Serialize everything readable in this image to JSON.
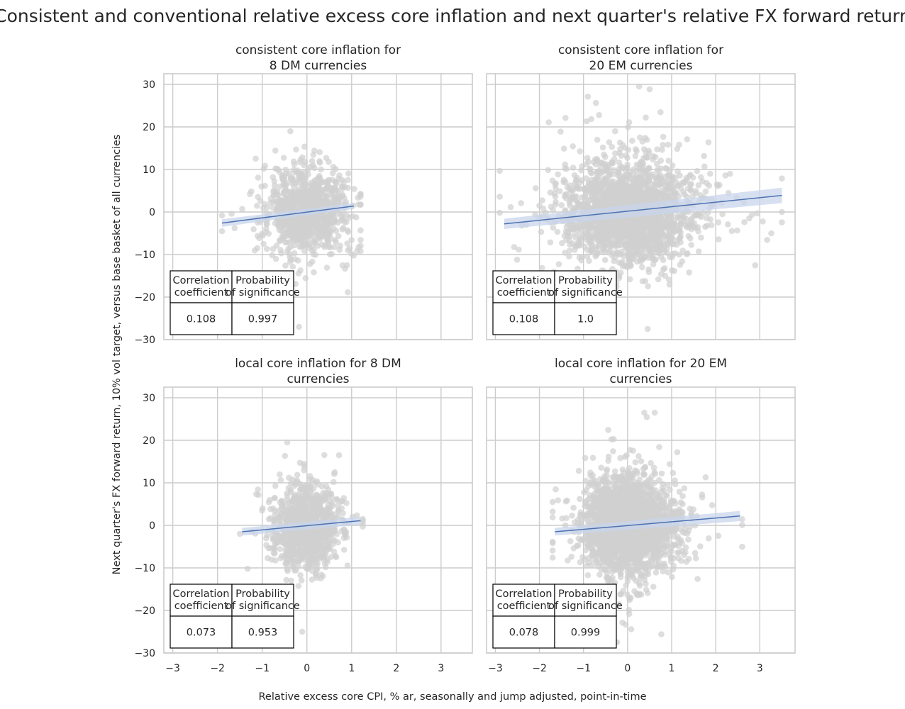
{
  "figure": {
    "title": "Consistent and conventional relative excess core inflation and next quarter's relative FX forward return",
    "xlabel": "Relative excess core CPI, % ar, seasonally and jump adjusted, point-in-time",
    "ylabel": "Next quarter's FX forward return, 10% vol target, versus base basket of all currencies",
    "colors": {
      "points": "#d0d0d0",
      "line": "#4c72b0",
      "band": "#c8d6ec",
      "grid": "#cccccc",
      "spine": "#cccccc"
    }
  },
  "chart_data": [
    {
      "type": "scatter",
      "title_lines": [
        "consistent core inflation for",
        "8 DM currencies"
      ],
      "xlim": [
        -3.2,
        3.7
      ],
      "ylim": [
        -30,
        32.5
      ],
      "xticks": [
        -3,
        -2,
        -1,
        0,
        1,
        2,
        3
      ],
      "yticks": [
        -30,
        -20,
        -10,
        0,
        10,
        20,
        30
      ],
      "show_xticklabels": false,
      "show_yticklabels": true,
      "cloud": {
        "n": 950,
        "x_center": 0.0,
        "x_spread": 0.45,
        "x_range": [
          -1.9,
          1.2
        ],
        "y_spread": 5.0,
        "y_range": [
          -27,
          19.5
        ]
      },
      "regression": {
        "x": [
          -1.9,
          1.05
        ],
        "y": [
          -2.6,
          1.4
        ],
        "band_halfwidth": [
          0.9,
          0.7
        ]
      },
      "stats_table": {
        "headers": [
          [
            "Correlation",
            "coefficient"
          ],
          [
            "Probability",
            "of significance"
          ]
        ],
        "values": [
          "0.108",
          "0.997"
        ]
      }
    },
    {
      "type": "scatter",
      "title_lines": [
        "consistent core inflation for",
        "20 EM currencies"
      ],
      "xlim": [
        -3.2,
        3.8
      ],
      "ylim": [
        -30,
        32.5
      ],
      "xticks": [
        -3,
        -2,
        -1,
        0,
        1,
        2,
        3
      ],
      "yticks": [
        -30,
        -20,
        -10,
        0,
        10,
        20,
        30
      ],
      "show_xticklabels": false,
      "show_yticklabels": false,
      "cloud": {
        "n": 2200,
        "x_center": 0.0,
        "x_spread": 0.7,
        "x_range": [
          -2.9,
          3.5
        ],
        "y_spread": 5.8,
        "y_range": [
          -27.5,
          29.5
        ]
      },
      "regression": {
        "x": [
          -2.8,
          3.5
        ],
        "y": [
          -2.8,
          3.9
        ],
        "band_halfwidth": [
          1.2,
          1.8
        ]
      },
      "stats_table": {
        "headers": [
          [
            "Correlation",
            "coefficient"
          ],
          [
            "Probability",
            "of significance"
          ]
        ],
        "values": [
          "0.108",
          "1.0"
        ]
      }
    },
    {
      "type": "scatter",
      "title_lines": [
        "local core inflation for 8 DM",
        "currencies"
      ],
      "xlim": [
        -3.2,
        3.7
      ],
      "ylim": [
        -30,
        32.5
      ],
      "xticks": [
        -3,
        -2,
        -1,
        0,
        1,
        2,
        3
      ],
      "yticks": [
        -30,
        -20,
        -10,
        0,
        10,
        20,
        30
      ],
      "show_xticklabels": true,
      "show_yticklabels": true,
      "cloud": {
        "n": 950,
        "x_center": 0.0,
        "x_spread": 0.35,
        "x_range": [
          -1.5,
          1.25
        ],
        "y_spread": 5.0,
        "y_range": [
          -25,
          19.5
        ]
      },
      "regression": {
        "x": [
          -1.45,
          1.2
        ],
        "y": [
          -1.5,
          1.1
        ],
        "band_halfwidth": [
          0.9,
          0.9
        ]
      },
      "stats_table": {
        "headers": [
          [
            "Correlation",
            "coefficient"
          ],
          [
            "Probability",
            "of significance"
          ]
        ],
        "values": [
          "0.073",
          "0.953"
        ]
      }
    },
    {
      "type": "scatter",
      "title_lines": [
        "local core inflation for 20 EM",
        "currencies"
      ],
      "xlim": [
        -3.2,
        3.8
      ],
      "ylim": [
        -30,
        32.5
      ],
      "xticks": [
        -3,
        -2,
        -1,
        0,
        1,
        2,
        3
      ],
      "yticks": [
        -30,
        -20,
        -10,
        0,
        10,
        20,
        30
      ],
      "show_xticklabels": true,
      "show_yticklabels": false,
      "cloud": {
        "n": 2200,
        "x_center": 0.0,
        "x_spread": 0.5,
        "x_range": [
          -1.7,
          2.6
        ],
        "y_spread": 5.5,
        "y_range": [
          -27.5,
          26.5
        ]
      },
      "regression": {
        "x": [
          -1.65,
          2.55
        ],
        "y": [
          -1.5,
          2.2
        ],
        "band_halfwidth": [
          0.9,
          1.2
        ]
      },
      "stats_table": {
        "headers": [
          [
            "Correlation",
            "coefficient"
          ],
          [
            "Probability",
            "of significance"
          ]
        ],
        "values": [
          "0.078",
          "0.999"
        ]
      }
    }
  ]
}
